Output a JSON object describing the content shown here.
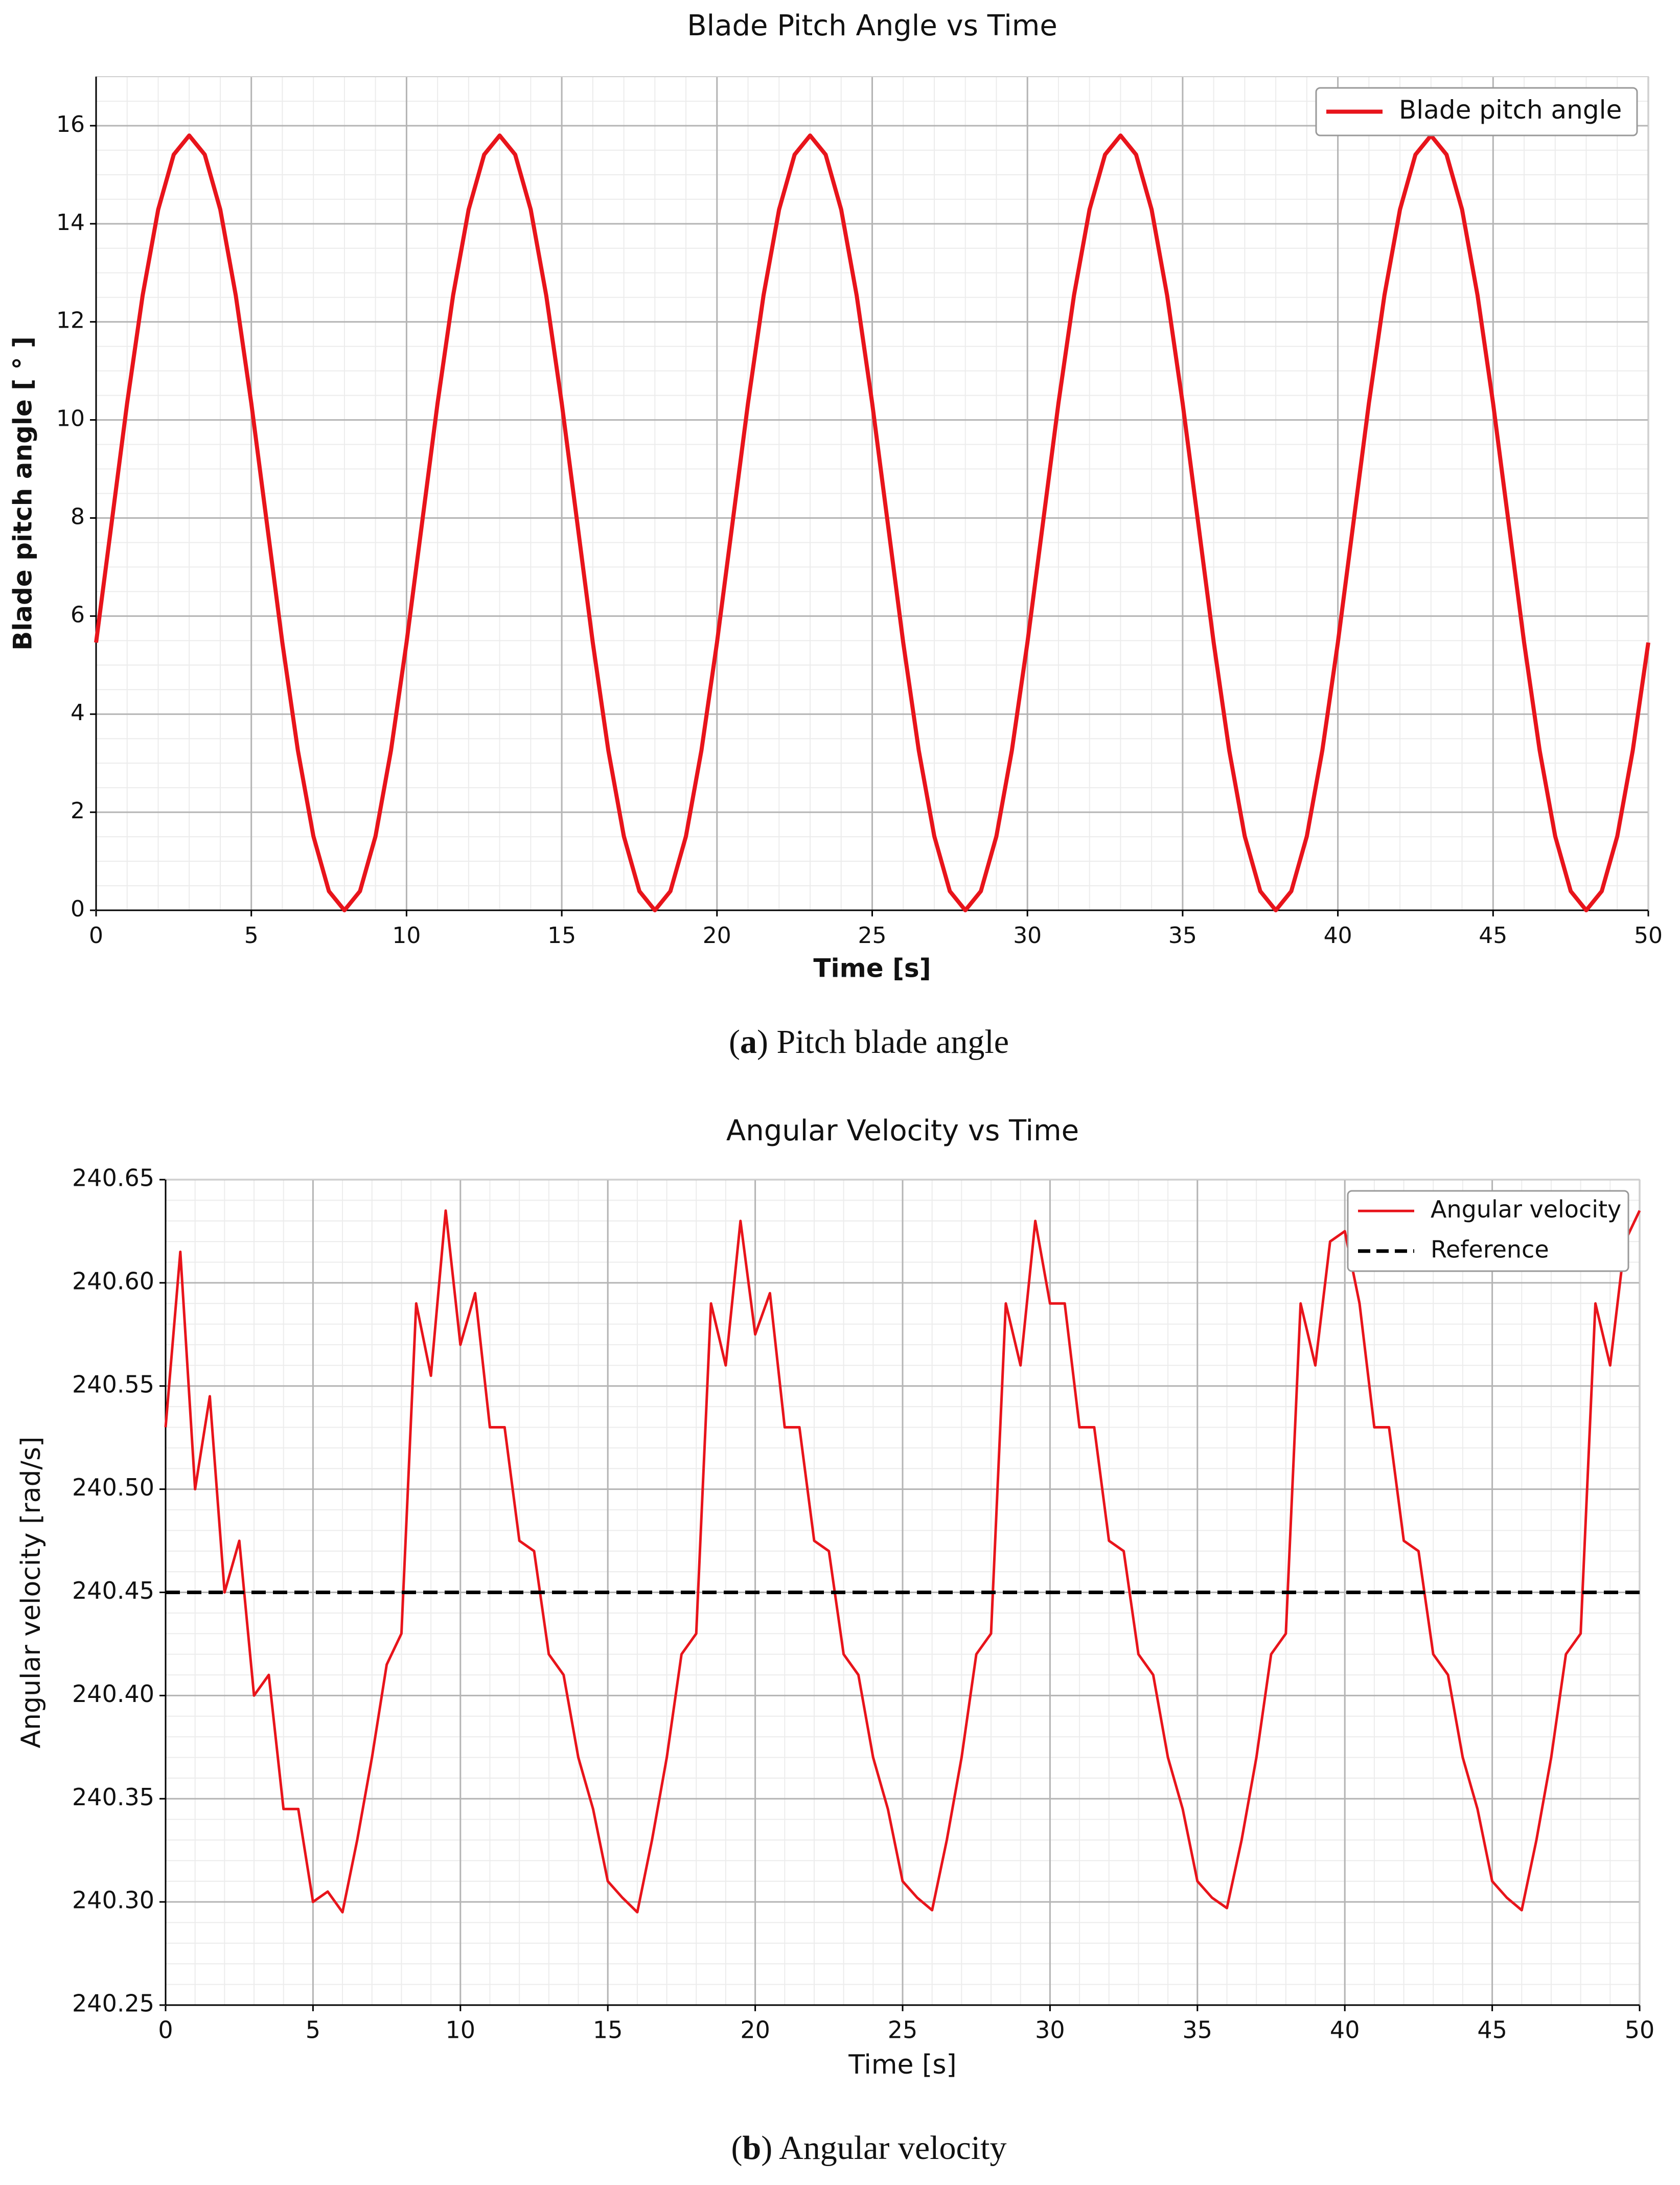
{
  "chart_data": [
    {
      "type": "line",
      "title": "Blade Pitch Angle vs Time",
      "xlabel": "Time [s]",
      "ylabel": "Blade pitch angle [ ° ]",
      "caption": [
        "(",
        "a",
        ") Pitch blade angle"
      ],
      "x": [
        0,
        0.5,
        1,
        1.5,
        2,
        2.5,
        3,
        3.5,
        4,
        4.5,
        5,
        5.5,
        6,
        6.5,
        7,
        7.5,
        8,
        8.5,
        9,
        9.5,
        10,
        10.5,
        11,
        11.5,
        12,
        12.5,
        13,
        13.5,
        14,
        14.5,
        15,
        15.5,
        16,
        16.5,
        17,
        17.5,
        18,
        18.5,
        19,
        19.5,
        20,
        20.5,
        21,
        21.5,
        22,
        22.5,
        23,
        23.5,
        24,
        24.5,
        25,
        25.5,
        26,
        26.5,
        27,
        27.5,
        28,
        28.5,
        29,
        29.5,
        30,
        30.5,
        31,
        31.5,
        32,
        32.5,
        33,
        33.5,
        34,
        34.5,
        35,
        35.5,
        36,
        36.5,
        37,
        37.5,
        38,
        38.5,
        39,
        39.5,
        40,
        40.5,
        41,
        41.5,
        42,
        42.5,
        43,
        43.5,
        44,
        44.5,
        45,
        45.5,
        46,
        46.5,
        47,
        47.5,
        48,
        48.5,
        49,
        49.5,
        50
      ],
      "series": [
        {
          "name": "Blade pitch angle",
          "color": "#e8141b",
          "values": [
            5.46,
            7.9,
            10.34,
            12.54,
            14.29,
            15.41,
            15.8,
            15.41,
            14.29,
            12.54,
            10.34,
            7.9,
            5.46,
            3.26,
            1.51,
            0.39,
            0,
            0.39,
            1.51,
            3.26,
            5.46,
            7.9,
            10.34,
            12.54,
            14.29,
            15.41,
            15.8,
            15.41,
            14.29,
            12.54,
            10.34,
            7.9,
            5.46,
            3.26,
            1.51,
            0.39,
            0,
            0.39,
            1.51,
            3.26,
            5.46,
            7.9,
            10.34,
            12.54,
            14.29,
            15.41,
            15.8,
            15.41,
            14.29,
            12.54,
            10.34,
            7.9,
            5.46,
            3.26,
            1.51,
            0.39,
            0,
            0.39,
            1.51,
            3.26,
            5.46,
            7.9,
            10.34,
            12.54,
            14.29,
            15.41,
            15.8,
            15.41,
            14.29,
            12.54,
            10.34,
            7.9,
            5.46,
            3.26,
            1.51,
            0.39,
            0,
            0.39,
            1.51,
            3.26,
            5.46,
            7.9,
            10.34,
            12.54,
            14.29,
            15.41,
            15.8,
            15.41,
            14.29,
            12.54,
            10.34,
            7.9,
            5.46,
            3.26,
            1.51,
            0.39,
            0,
            0.39,
            1.51,
            3.26,
            5.46
          ]
        }
      ],
      "xlim": [
        0,
        50
      ],
      "xticks": [
        0,
        5,
        10,
        15,
        20,
        25,
        30,
        35,
        40,
        45,
        50
      ],
      "ylim": [
        0,
        17
      ],
      "yticks": [
        0,
        2,
        4,
        6,
        8,
        10,
        12,
        14,
        16
      ],
      "grid": true,
      "minor_grid": true,
      "legend": "upper right"
    },
    {
      "type": "line",
      "title": "Angular Velocity vs Time",
      "xlabel": "Time [s]",
      "ylabel": "Angular velocity [rad/s]",
      "caption": [
        "(",
        "b",
        ") Angular velocity"
      ],
      "x": [
        0,
        0.5,
        1,
        1.5,
        2,
        2.5,
        3,
        3.5,
        4,
        4.5,
        5,
        5.5,
        6,
        6.5,
        7,
        7.5,
        8,
        8.5,
        9,
        9.5,
        10,
        10.5,
        11,
        11.5,
        12,
        12.5,
        13,
        13.5,
        14,
        14.5,
        15,
        15.5,
        16,
        16.5,
        17,
        17.5,
        18,
        18.5,
        19,
        19.5,
        20,
        20.5,
        21,
        21.5,
        22,
        22.5,
        23,
        23.5,
        24,
        24.5,
        25,
        25.5,
        26,
        26.5,
        27,
        27.5,
        28,
        28.5,
        29,
        29.5,
        30,
        30.5,
        31,
        31.5,
        32,
        32.5,
        33,
        33.5,
        34,
        34.5,
        35,
        35.5,
        36,
        36.5,
        37,
        37.5,
        38,
        38.5,
        39,
        39.5,
        40,
        40.5,
        41,
        41.5,
        42,
        42.5,
        43,
        43.5,
        44,
        44.5,
        45,
        45.5,
        46,
        46.5,
        47,
        47.5,
        48,
        48.5,
        49,
        49.5,
        50
      ],
      "series": [
        {
          "name": "Angular velocity",
          "color": "#e8141b",
          "values": [
            240.53,
            240.615,
            240.5,
            240.545,
            240.45,
            240.475,
            240.4,
            240.41,
            240.345,
            240.345,
            240.3,
            240.305,
            240.295,
            240.33,
            240.37,
            240.415,
            240.43,
            240.59,
            240.555,
            240.635,
            240.57,
            240.595,
            240.53,
            240.53,
            240.475,
            240.47,
            240.42,
            240.41,
            240.37,
            240.345,
            240.31,
            240.302,
            240.295,
            240.33,
            240.37,
            240.42,
            240.43,
            240.59,
            240.56,
            240.63,
            240.575,
            240.595,
            240.53,
            240.53,
            240.475,
            240.47,
            240.42,
            240.41,
            240.37,
            240.345,
            240.31,
            240.302,
            240.296,
            240.33,
            240.37,
            240.42,
            240.43,
            240.59,
            240.56,
            240.63,
            240.59,
            240.59,
            240.53,
            240.53,
            240.475,
            240.47,
            240.42,
            240.41,
            240.37,
            240.345,
            240.31,
            240.302,
            240.297,
            240.33,
            240.37,
            240.42,
            240.43,
            240.59,
            240.56,
            240.62,
            240.625,
            240.59,
            240.53,
            240.53,
            240.475,
            240.47,
            240.42,
            240.41,
            240.37,
            240.345,
            240.31,
            240.302,
            240.296,
            240.33,
            240.37,
            240.42,
            240.43,
            240.59,
            240.56,
            240.62,
            240.635
          ]
        },
        {
          "name": "Reference",
          "color": "#000000",
          "dashed": true,
          "x": [
            0,
            50
          ],
          "values": [
            240.45,
            240.45
          ]
        }
      ],
      "xlim": [
        0,
        50
      ],
      "xticks": [
        0,
        5,
        10,
        15,
        20,
        25,
        30,
        35,
        40,
        45,
        50
      ],
      "ylim": [
        240.25,
        240.65
      ],
      "yticks": [
        240.25,
        {
          "value": 240.3,
          "label": "240.30"
        },
        240.35,
        {
          "value": 240.4,
          "label": "240.40"
        },
        240.45,
        {
          "value": 240.5,
          "label": "240.50"
        },
        240.55,
        {
          "value": 240.6,
          "label": "240.60"
        },
        240.65
      ],
      "grid": true,
      "minor_grid": true,
      "legend": "upper right"
    }
  ]
}
